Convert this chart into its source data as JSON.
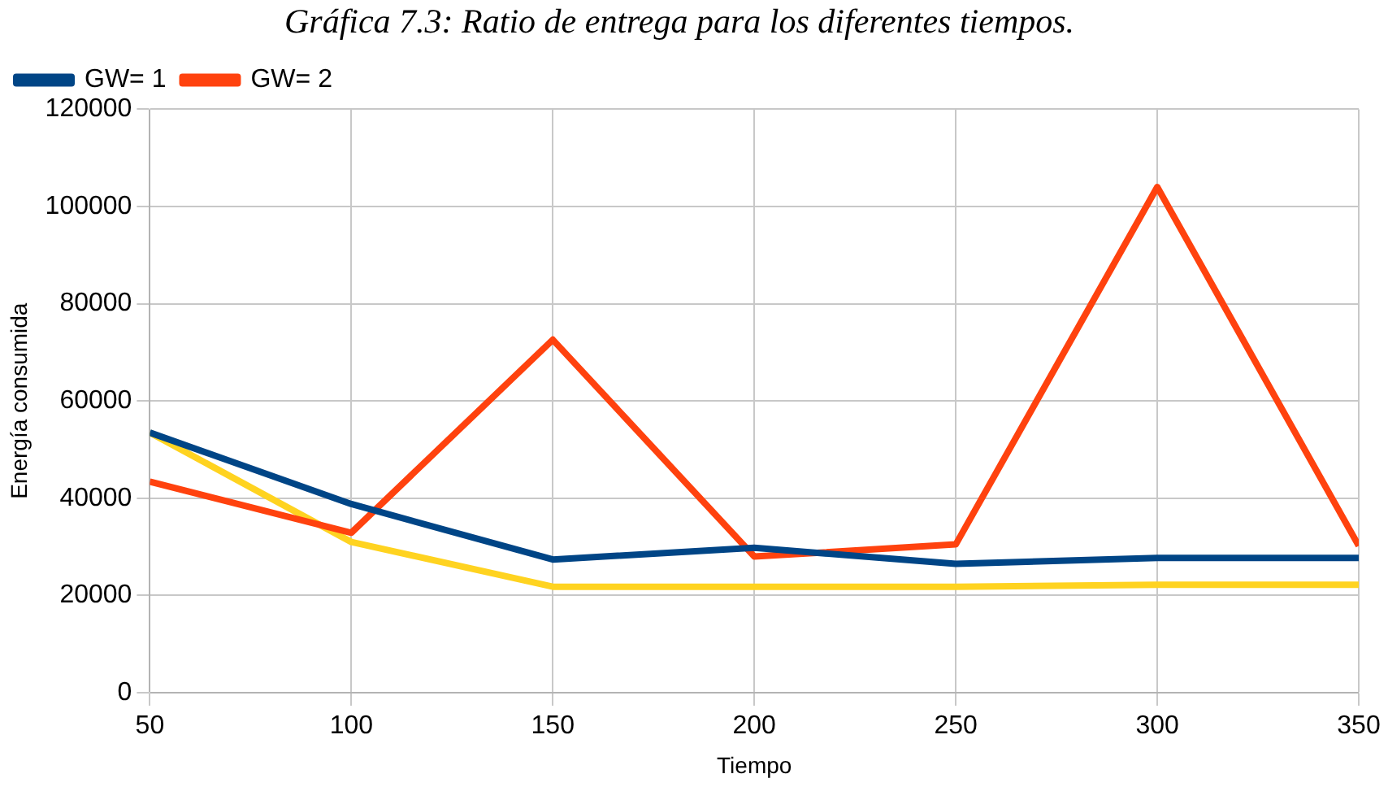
{
  "chart_data": {
    "type": "line",
    "title": "Gráfica 7.3: Ratio de entrega para los diferentes tiempos.",
    "xlabel": "Tiempo",
    "ylabel": "Energía consumida",
    "x": [
      50,
      100,
      150,
      200,
      250,
      300,
      350
    ],
    "xlim": [
      50,
      350
    ],
    "xticks": [
      50,
      100,
      150,
      200,
      250,
      300,
      350
    ],
    "ylim": [
      0,
      120000
    ],
    "yticks": [
      0,
      20000,
      40000,
      60000,
      80000,
      100000,
      120000
    ],
    "grid": true,
    "legend": "top left",
    "marker": "none",
    "series": [
      {
        "name": "GW= 1",
        "color": "#004586",
        "values": [
          53500,
          38800,
          27400,
          29800,
          26500,
          27700,
          27700
        ]
      },
      {
        "name": "GW= 2",
        "color": "#ff420e",
        "values": [
          43400,
          32900,
          72600,
          28000,
          30500,
          104000,
          30200
        ]
      },
      {
        "color": "#ffd320",
        "values": [
          53500,
          31000,
          21800,
          21800,
          21800,
          22200,
          22200
        ]
      }
    ]
  }
}
